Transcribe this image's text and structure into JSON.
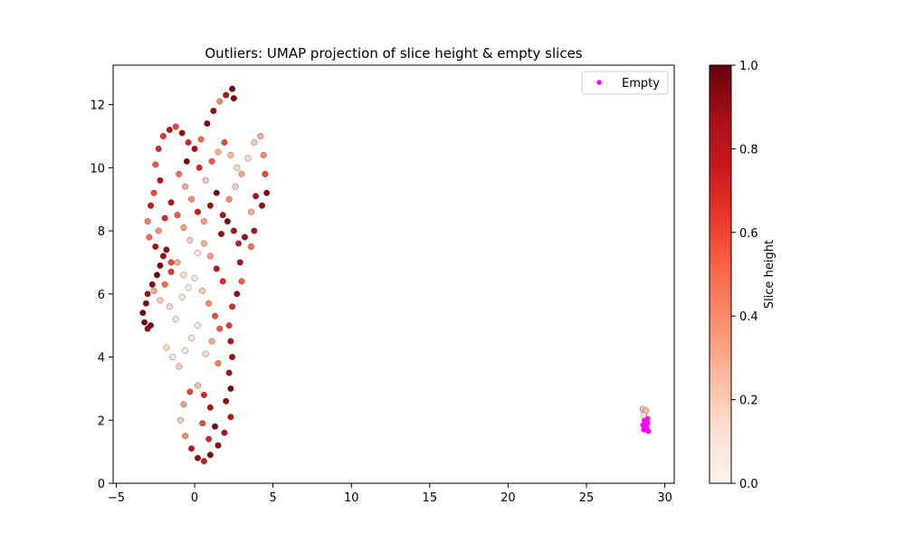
{
  "chart_data": {
    "type": "scatter",
    "title": "Outliers: UMAP projection of slice height & empty slices",
    "xlabel": "",
    "ylabel": "",
    "xlim": [
      -5.2,
      30.6
    ],
    "ylim": [
      0,
      13.25
    ],
    "xticks": [
      -5,
      0,
      5,
      10,
      15,
      20,
      25,
      30
    ],
    "yticks": [
      0,
      2,
      4,
      6,
      8,
      10,
      12
    ],
    "grid": false,
    "legend": {
      "placement": "top-right",
      "entries": [
        "Empty"
      ]
    },
    "colorbar": {
      "label": "Slice height",
      "colormap": "Reds",
      "range": [
        0.0,
        1.0
      ],
      "ticks": [
        "0.0",
        "0.2",
        "0.4",
        "0.6",
        "0.8",
        "1.0"
      ]
    },
    "series": [
      {
        "kind": "colormapped",
        "color_by": "slice height",
        "points": [
          [
            -3.3,
            5.4,
            0.98
          ],
          [
            -3.2,
            5.1,
            0.95
          ],
          [
            -3.0,
            4.9,
            0.9
          ],
          [
            -2.8,
            5.0,
            0.97
          ],
          [
            -3.1,
            5.7,
            0.92
          ],
          [
            -3.0,
            6.0,
            0.88
          ],
          [
            -2.7,
            6.3,
            0.95
          ],
          [
            -2.4,
            6.6,
            1.0
          ],
          [
            -2.2,
            6.9,
            0.97
          ],
          [
            -2.0,
            7.2,
            0.9
          ],
          [
            -2.5,
            7.5,
            0.85
          ],
          [
            -1.8,
            7.4,
            0.92
          ],
          [
            -1.5,
            7.0,
            0.6
          ],
          [
            -2.9,
            7.8,
            0.5
          ],
          [
            -3.0,
            8.3,
            0.45
          ],
          [
            -2.8,
            8.8,
            0.75
          ],
          [
            -2.6,
            9.2,
            0.6
          ],
          [
            -2.2,
            9.6,
            0.8
          ],
          [
            -2.5,
            10.1,
            0.55
          ],
          [
            -2.3,
            10.6,
            0.7
          ],
          [
            -2.0,
            11.0,
            0.65
          ],
          [
            -1.6,
            11.2,
            0.8
          ],
          [
            -1.2,
            11.3,
            0.6
          ],
          [
            -0.8,
            11.1,
            0.9
          ],
          [
            -0.4,
            10.8,
            0.7
          ],
          [
            0.0,
            10.6,
            0.85
          ],
          [
            0.4,
            10.9,
            0.5
          ],
          [
            0.8,
            11.4,
            0.95
          ],
          [
            1.2,
            11.8,
            0.9
          ],
          [
            1.6,
            12.1,
            0.4
          ],
          [
            2.0,
            12.3,
            0.85
          ],
          [
            2.4,
            12.5,
            1.0
          ],
          [
            2.5,
            12.2,
            0.95
          ],
          [
            -1.0,
            9.8,
            0.5
          ],
          [
            -0.6,
            9.4,
            0.3
          ],
          [
            -0.2,
            9.0,
            0.4
          ],
          [
            0.2,
            8.6,
            0.75
          ],
          [
            0.6,
            8.3,
            0.35
          ],
          [
            1.0,
            8.8,
            0.9
          ],
          [
            1.4,
            9.2,
            0.95
          ],
          [
            1.8,
            8.5,
            0.85
          ],
          [
            2.2,
            9.0,
            0.4
          ],
          [
            2.6,
            9.4,
            0.2
          ],
          [
            3.0,
            9.8,
            0.3
          ],
          [
            3.4,
            10.3,
            0.15
          ],
          [
            3.8,
            10.8,
            0.2
          ],
          [
            4.2,
            11.0,
            0.3
          ],
          [
            4.4,
            10.4,
            0.4
          ],
          [
            4.5,
            9.8,
            0.6
          ],
          [
            4.6,
            9.2,
            0.95
          ],
          [
            4.3,
            8.8,
            0.9
          ],
          [
            3.9,
            9.1,
            0.85
          ],
          [
            3.6,
            8.6,
            0.3
          ],
          [
            3.8,
            8.0,
            0.85
          ],
          [
            3.6,
            7.5,
            0.5
          ],
          [
            3.2,
            7.8,
            0.9
          ],
          [
            2.8,
            7.6,
            0.75
          ],
          [
            2.9,
            7.0,
            0.85
          ],
          [
            3.0,
            6.4,
            0.55
          ],
          [
            2.7,
            6.0,
            0.9
          ],
          [
            2.4,
            5.6,
            0.7
          ],
          [
            2.2,
            5.0,
            0.65
          ],
          [
            2.3,
            4.5,
            0.8
          ],
          [
            2.4,
            4.0,
            0.9
          ],
          [
            2.2,
            3.5,
            0.85
          ],
          [
            2.3,
            3.0,
            0.95
          ],
          [
            2.0,
            2.6,
            0.9
          ],
          [
            2.3,
            2.1,
            0.8
          ],
          [
            1.9,
            1.6,
            0.85
          ],
          [
            1.5,
            1.2,
            0.9
          ],
          [
            1.0,
            0.9,
            0.95
          ],
          [
            0.6,
            0.7,
            0.75
          ],
          [
            0.2,
            0.8,
            0.9
          ],
          [
            -0.2,
            1.1,
            0.8
          ],
          [
            -0.6,
            1.5,
            0.4
          ],
          [
            -0.9,
            2.0,
            0.2
          ],
          [
            -0.7,
            2.5,
            0.35
          ],
          [
            -0.3,
            2.9,
            0.6
          ],
          [
            0.2,
            3.1,
            0.25
          ],
          [
            0.6,
            2.8,
            0.7
          ],
          [
            1.0,
            2.4,
            0.85
          ],
          [
            1.3,
            1.8,
            0.95
          ],
          [
            0.9,
            1.4,
            0.7
          ],
          [
            0.5,
            1.9,
            0.6
          ],
          [
            -1.8,
            4.3,
            0.15
          ],
          [
            -1.4,
            4.0,
            0.1
          ],
          [
            -1.0,
            3.7,
            0.2
          ],
          [
            -0.6,
            4.2,
            0.05
          ],
          [
            -0.2,
            4.6,
            0.1
          ],
          [
            0.2,
            5.0,
            0.05
          ],
          [
            -1.2,
            5.2,
            0.1
          ],
          [
            -1.6,
            5.6,
            0.15
          ],
          [
            -0.8,
            5.9,
            0.08
          ],
          [
            -0.4,
            6.2,
            0.05
          ],
          [
            0.0,
            6.5,
            0.1
          ],
          [
            0.5,
            6.1,
            0.2
          ],
          [
            0.9,
            5.7,
            0.4
          ],
          [
            1.3,
            5.3,
            0.6
          ],
          [
            1.6,
            4.9,
            0.55
          ],
          [
            1.1,
            4.5,
            0.3
          ],
          [
            0.7,
            4.1,
            0.15
          ],
          [
            1.5,
            3.8,
            0.45
          ],
          [
            1.8,
            6.4,
            0.7
          ],
          [
            1.4,
            6.8,
            0.8
          ],
          [
            1.0,
            7.2,
            0.35
          ],
          [
            0.6,
            7.6,
            0.3
          ],
          [
            0.2,
            7.3,
            0.1
          ],
          [
            -0.3,
            7.7,
            0.2
          ],
          [
            -0.7,
            8.1,
            0.35
          ],
          [
            -1.1,
            8.5,
            0.55
          ],
          [
            -1.5,
            8.9,
            0.85
          ],
          [
            -1.9,
            8.4,
            0.7
          ],
          [
            -2.3,
            8.0,
            0.4
          ],
          [
            -0.5,
            10.2,
            0.95
          ],
          [
            0.3,
            10.0,
            0.7
          ],
          [
            0.7,
            9.6,
            0.2
          ],
          [
            1.1,
            10.2,
            0.55
          ],
          [
            1.5,
            10.5,
            0.3
          ],
          [
            1.9,
            10.8,
            0.6
          ],
          [
            2.3,
            10.4,
            0.25
          ],
          [
            2.7,
            10.0,
            0.15
          ],
          [
            1.7,
            7.9,
            0.9
          ],
          [
            2.1,
            8.3,
            0.95
          ],
          [
            2.5,
            8.0,
            0.85
          ],
          [
            -2.6,
            6.1,
            0.3
          ],
          [
            -2.2,
            5.8,
            0.2
          ],
          [
            -1.9,
            6.3,
            0.5
          ],
          [
            -1.5,
            6.7,
            0.65
          ],
          [
            -1.1,
            7.0,
            0.3
          ],
          [
            -0.7,
            6.6,
            0.15
          ]
        ]
      },
      {
        "name": "Empty",
        "color": "#ff00ff",
        "points": [
          [
            28.7,
            1.7
          ],
          [
            28.8,
            1.8
          ],
          [
            28.9,
            1.9
          ],
          [
            28.7,
            2.0
          ],
          [
            28.85,
            1.75
          ],
          [
            28.6,
            1.85
          ],
          [
            28.95,
            1.65
          ],
          [
            28.75,
            1.95
          ],
          [
            28.9,
            2.05
          ],
          [
            28.65,
            1.7
          ]
        ]
      },
      {
        "kind": "colormapped",
        "color_by": "slice height",
        "points": [
          [
            28.6,
            2.35,
            0.2
          ],
          [
            28.7,
            2.25,
            0.15
          ],
          [
            28.8,
            2.3,
            0.25
          ],
          [
            28.65,
            2.15,
            0.1
          ]
        ]
      }
    ]
  }
}
